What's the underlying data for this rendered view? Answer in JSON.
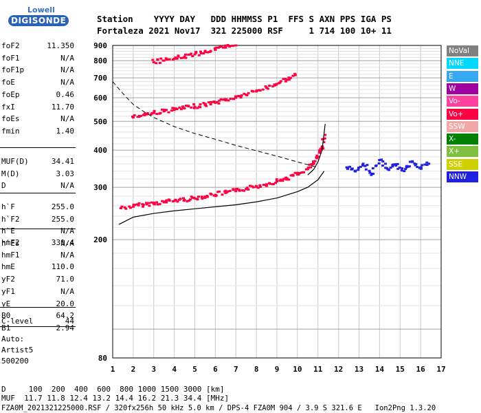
{
  "logo": {
    "top": "Lowell",
    "bottom": "DIGISONDE"
  },
  "header": {
    "line1": "Station    YYYY DAY   DDD HHMMSS P1  FFS S AXN PPS IGA PS",
    "line2": "Fortaleza 2021 Nov17  321 225000 RSF     1 714 100 10+ 11"
  },
  "params": {
    "group1": [
      {
        "label": "foF2",
        "value": "11.350"
      },
      {
        "label": "foF1",
        "value": "N/A"
      },
      {
        "label": "foF1p",
        "value": "N/A"
      },
      {
        "label": "foE",
        "value": "N/A"
      },
      {
        "label": "foEp",
        "value": "0.46"
      },
      {
        "label": "fxI",
        "value": "11.70"
      },
      {
        "label": "foEs",
        "value": "N/A"
      },
      {
        "label": "fmin",
        "value": "1.40"
      }
    ],
    "group2": [
      {
        "label": "MUF(D)",
        "value": "34.41"
      },
      {
        "label": "M(D)",
        "value": "3.03"
      },
      {
        "label": "D",
        "value": "N/A"
      }
    ],
    "group3": [
      {
        "label": "h`F",
        "value": "255.0"
      },
      {
        "label": "h`F2",
        "value": "255.0"
      },
      {
        "label": "h`E",
        "value": "N/A"
      },
      {
        "label": "h`Es",
        "value": "N/A"
      }
    ],
    "group4": [
      {
        "label": "hmF2",
        "value": "331.4"
      },
      {
        "label": "hmF1",
        "value": "N/A"
      },
      {
        "label": "hmE",
        "value": "110.0"
      },
      {
        "label": "yF2",
        "value": "71.0"
      },
      {
        "label": "yF1",
        "value": "N/A"
      },
      {
        "label": "yE",
        "value": "20.0"
      },
      {
        "label": "B0",
        "value": "64.2"
      },
      {
        "label": "B1",
        "value": "2.94"
      }
    ],
    "group5": [
      {
        "label": "C-level",
        "value": "44"
      }
    ],
    "auto_label": "Auto:",
    "artist": "Artist5",
    "artist_version": "500200"
  },
  "legend": [
    {
      "label": "NoVal",
      "color": "#808080"
    },
    {
      "label": "NNE",
      "color": "#00d8ff"
    },
    {
      "label": "E",
      "color": "#38a8f0"
    },
    {
      "label": "W",
      "color": "#a000a0"
    },
    {
      "label": "Vo-",
      "color": "#ff40a0"
    },
    {
      "label": "Vo+",
      "color": "#ff0040"
    },
    {
      "label": "SSW",
      "color": "#f0a8a8"
    },
    {
      "label": "X-",
      "color": "#008000"
    },
    {
      "label": "X+",
      "color": "#80c040"
    },
    {
      "label": "SSE",
      "color": "#d0d000"
    },
    {
      "label": "NNW",
      "color": "#2020e0"
    }
  ],
  "footer": {
    "line1": "D     100  200  400  600  800 1000 1500 3000 [km]",
    "line2": "MUF  11.7 11.8 12.4 13.2 14.4 16.2 21.3 34.4 [MHz]",
    "line3": "FZA0M_2021321225000.RSF / 320fx256h 50 kHz 5.0 km / DPS-4 FZA0M 904 / 3.9 S 321.6 E   Ion2Png 1.3.20"
  },
  "chart_data": {
    "type": "scatter",
    "title": "",
    "xlabel": "",
    "ylabel": "",
    "xlim": [
      1,
      17
    ],
    "ylim": [
      80,
      900
    ],
    "yscale": "log",
    "xticks": [
      1,
      2,
      3,
      4,
      5,
      6,
      7,
      8,
      9,
      10,
      11,
      12,
      13,
      14,
      15,
      16,
      17
    ],
    "yticks": [
      80,
      200,
      300,
      400,
      500,
      600,
      700,
      800,
      900
    ],
    "grid": true,
    "legend_position": "right",
    "series": [
      {
        "name": "Vo+",
        "color": "#ff0040",
        "x": [
          1.4,
          2,
          2.5,
          3,
          3.5,
          4,
          4.5,
          5,
          5.5,
          6,
          6.5,
          7,
          7.5,
          8,
          8.5,
          9,
          9.5,
          10,
          10.5,
          10.8,
          11,
          11.2,
          11.35
        ],
        "y": [
          255,
          258,
          262,
          264,
          267,
          270,
          272,
          275,
          279,
          283,
          287,
          291,
          296,
          301,
          307,
          314,
          321,
          331,
          345,
          360,
          380,
          410,
          450
        ]
      },
      {
        "name": "Vo+ 2nd hop",
        "color": "#ff0040",
        "x": [
          2,
          2.5,
          3,
          3.5,
          4,
          4.5,
          5,
          5.5,
          6,
          6.5,
          7,
          7.5,
          8,
          8.5,
          9,
          9.5,
          9.9
        ],
        "y": [
          515,
          525,
          533,
          540,
          546,
          553,
          560,
          568,
          577,
          588,
          600,
          614,
          630,
          648,
          668,
          690,
          715
        ]
      },
      {
        "name": "Vo+ 3rd hop",
        "color": "#ff0040",
        "x": [
          3,
          3.5,
          4,
          4.5,
          5,
          5.5,
          6,
          6.5,
          7
        ],
        "y": [
          790,
          800,
          812,
          825,
          840,
          855,
          870,
          885,
          900
        ]
      },
      {
        "name": "NNW spread",
        "color": "#2020e0",
        "x": [
          12.4,
          12.8,
          13.2,
          13.6,
          14,
          14.4,
          14.8,
          15.2,
          15.6,
          16,
          16.4
        ],
        "y": [
          350,
          340,
          360,
          330,
          370,
          345,
          355,
          340,
          365,
          350,
          360
        ]
      }
    ],
    "profile_curve": {
      "x": [
        1.3,
        2,
        3,
        4,
        5,
        6,
        7,
        8,
        9,
        10,
        10.5,
        11,
        11.3
      ],
      "y": [
        225,
        238,
        245,
        250,
        254,
        258,
        262,
        268,
        276,
        290,
        300,
        318,
        340
      ]
    },
    "o_trace_theory": {
      "x": [
        10.5,
        10.8,
        11,
        11.2,
        11.35
      ],
      "y": [
        330,
        345,
        365,
        400,
        490
      ]
    },
    "muf_dashed": {
      "x": [
        1,
        1.5,
        2,
        2.5,
        3,
        4,
        5,
        6,
        7,
        8,
        9,
        10,
        11
      ],
      "y": [
        680,
        620,
        570,
        540,
        515,
        480,
        455,
        435,
        415,
        398,
        382,
        365,
        350
      ]
    }
  }
}
